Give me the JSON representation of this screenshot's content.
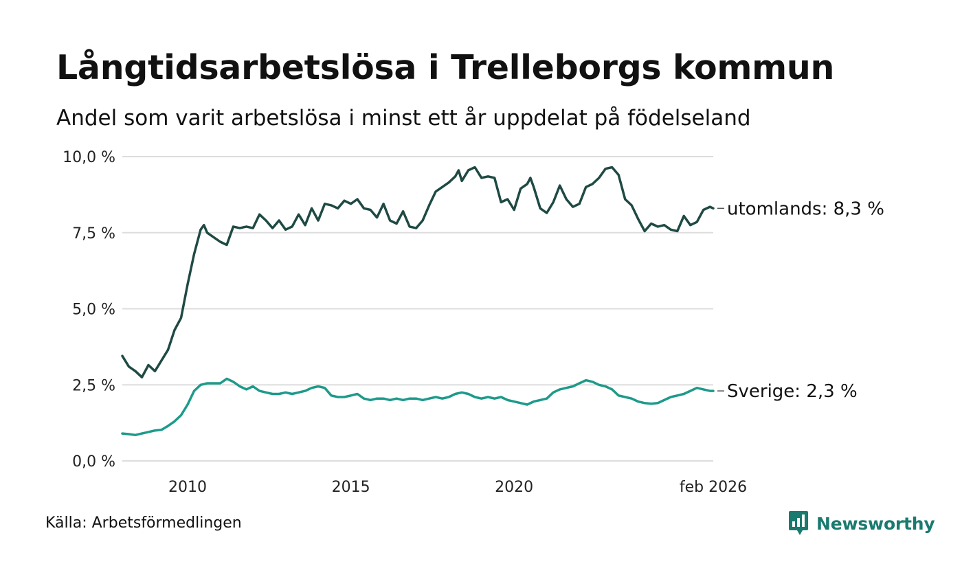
{
  "header": {
    "title": "Långtidsarbetslösa i Trelleborgs kommun",
    "subtitle": "Andel som varit arbetslösa i minst ett år uppdelat på födelseland"
  },
  "footer": {
    "source": "Källa: Arbetsförmedlingen",
    "brand": "Newsworthy"
  },
  "colors": {
    "utomlands": "#1f4a44",
    "sverige": "#1d9a8a",
    "grid": "#dddddd",
    "brand": "#1a7a6f"
  },
  "icons": {
    "brand_logo": "bar-chart-speech-bubble-icon"
  },
  "chart_data": {
    "type": "line",
    "title": "Långtidsarbetslösa i Trelleborgs kommun",
    "subtitle": "Andel som varit arbetslösa i minst ett år uppdelat på födelseland",
    "xlabel": "",
    "ylabel": "",
    "xlim": [
      2008.0,
      2026.1
    ],
    "ylim": [
      0,
      10
    ],
    "grid": true,
    "y_ticks": [
      {
        "value": 0,
        "label": "0,0 %"
      },
      {
        "value": 2.5,
        "label": "2,5 %"
      },
      {
        "value": 5,
        "label": "5,0 %"
      },
      {
        "value": 7.5,
        "label": "7,5 %"
      },
      {
        "value": 10,
        "label": "10,0 %"
      }
    ],
    "x_ticks": [
      {
        "value": 2010,
        "label": "2010"
      },
      {
        "value": 2015,
        "label": "2015"
      },
      {
        "value": 2020,
        "label": "2020"
      },
      {
        "value": 2026.1,
        "label": "feb 2026"
      }
    ],
    "series": [
      {
        "name": "utomlands",
        "label": "utomlands: 8,3 %",
        "points": [
          [
            2008.0,
            3.45
          ],
          [
            2008.2,
            3.1
          ],
          [
            2008.4,
            2.95
          ],
          [
            2008.6,
            2.75
          ],
          [
            2008.8,
            3.15
          ],
          [
            2009.0,
            2.95
          ],
          [
            2009.2,
            3.3
          ],
          [
            2009.4,
            3.65
          ],
          [
            2009.6,
            4.3
          ],
          [
            2009.8,
            4.7
          ],
          [
            2010.0,
            5.8
          ],
          [
            2010.2,
            6.8
          ],
          [
            2010.4,
            7.6
          ],
          [
            2010.5,
            7.75
          ],
          [
            2010.6,
            7.5
          ],
          [
            2010.8,
            7.35
          ],
          [
            2011.0,
            7.2
          ],
          [
            2011.2,
            7.1
          ],
          [
            2011.4,
            7.7
          ],
          [
            2011.6,
            7.65
          ],
          [
            2011.8,
            7.7
          ],
          [
            2012.0,
            7.65
          ],
          [
            2012.2,
            8.1
          ],
          [
            2012.4,
            7.9
          ],
          [
            2012.6,
            7.65
          ],
          [
            2012.8,
            7.9
          ],
          [
            2013.0,
            7.6
          ],
          [
            2013.2,
            7.7
          ],
          [
            2013.4,
            8.1
          ],
          [
            2013.6,
            7.75
          ],
          [
            2013.8,
            8.3
          ],
          [
            2014.0,
            7.9
          ],
          [
            2014.2,
            8.45
          ],
          [
            2014.4,
            8.4
          ],
          [
            2014.6,
            8.3
          ],
          [
            2014.8,
            8.55
          ],
          [
            2015.0,
            8.45
          ],
          [
            2015.2,
            8.6
          ],
          [
            2015.4,
            8.3
          ],
          [
            2015.6,
            8.25
          ],
          [
            2015.8,
            8.0
          ],
          [
            2016.0,
            8.45
          ],
          [
            2016.2,
            7.9
          ],
          [
            2016.4,
            7.8
          ],
          [
            2016.6,
            8.2
          ],
          [
            2016.8,
            7.7
          ],
          [
            2017.0,
            7.65
          ],
          [
            2017.2,
            7.9
          ],
          [
            2017.4,
            8.4
          ],
          [
            2017.6,
            8.85
          ],
          [
            2017.8,
            9.0
          ],
          [
            2018.0,
            9.15
          ],
          [
            2018.2,
            9.35
          ],
          [
            2018.3,
            9.55
          ],
          [
            2018.4,
            9.2
          ],
          [
            2018.6,
            9.55
          ],
          [
            2018.8,
            9.65
          ],
          [
            2019.0,
            9.3
          ],
          [
            2019.2,
            9.35
          ],
          [
            2019.4,
            9.3
          ],
          [
            2019.6,
            8.5
          ],
          [
            2019.8,
            8.6
          ],
          [
            2020.0,
            8.25
          ],
          [
            2020.2,
            8.95
          ],
          [
            2020.4,
            9.1
          ],
          [
            2020.5,
            9.3
          ],
          [
            2020.6,
            9.0
          ],
          [
            2020.8,
            8.3
          ],
          [
            2021.0,
            8.15
          ],
          [
            2021.2,
            8.5
          ],
          [
            2021.4,
            9.05
          ],
          [
            2021.6,
            8.6
          ],
          [
            2021.8,
            8.35
          ],
          [
            2022.0,
            8.45
          ],
          [
            2022.2,
            9.0
          ],
          [
            2022.4,
            9.1
          ],
          [
            2022.6,
            9.3
          ],
          [
            2022.8,
            9.6
          ],
          [
            2023.0,
            9.65
          ],
          [
            2023.2,
            9.4
          ],
          [
            2023.4,
            8.6
          ],
          [
            2023.6,
            8.4
          ],
          [
            2023.8,
            7.95
          ],
          [
            2024.0,
            7.55
          ],
          [
            2024.2,
            7.8
          ],
          [
            2024.4,
            7.7
          ],
          [
            2024.6,
            7.75
          ],
          [
            2024.8,
            7.6
          ],
          [
            2025.0,
            7.55
          ],
          [
            2025.2,
            8.05
          ],
          [
            2025.4,
            7.75
          ],
          [
            2025.6,
            7.85
          ],
          [
            2025.8,
            8.25
          ],
          [
            2026.0,
            8.35
          ],
          [
            2026.1,
            8.3
          ]
        ]
      },
      {
        "name": "Sverige",
        "label": "Sverige: 2,3 %",
        "points": [
          [
            2008.0,
            0.9
          ],
          [
            2008.2,
            0.88
          ],
          [
            2008.4,
            0.85
          ],
          [
            2008.6,
            0.9
          ],
          [
            2008.8,
            0.95
          ],
          [
            2009.0,
            1.0
          ],
          [
            2009.2,
            1.02
          ],
          [
            2009.4,
            1.15
          ],
          [
            2009.6,
            1.3
          ],
          [
            2009.8,
            1.5
          ],
          [
            2010.0,
            1.85
          ],
          [
            2010.2,
            2.3
          ],
          [
            2010.4,
            2.5
          ],
          [
            2010.6,
            2.55
          ],
          [
            2010.8,
            2.55
          ],
          [
            2011.0,
            2.55
          ],
          [
            2011.2,
            2.7
          ],
          [
            2011.4,
            2.6
          ],
          [
            2011.6,
            2.45
          ],
          [
            2011.8,
            2.35
          ],
          [
            2012.0,
            2.45
          ],
          [
            2012.2,
            2.3
          ],
          [
            2012.4,
            2.25
          ],
          [
            2012.6,
            2.2
          ],
          [
            2012.8,
            2.2
          ],
          [
            2013.0,
            2.25
          ],
          [
            2013.2,
            2.2
          ],
          [
            2013.4,
            2.25
          ],
          [
            2013.6,
            2.3
          ],
          [
            2013.8,
            2.4
          ],
          [
            2014.0,
            2.45
          ],
          [
            2014.2,
            2.4
          ],
          [
            2014.4,
            2.15
          ],
          [
            2014.6,
            2.1
          ],
          [
            2014.8,
            2.1
          ],
          [
            2015.0,
            2.15
          ],
          [
            2015.2,
            2.2
          ],
          [
            2015.4,
            2.05
          ],
          [
            2015.6,
            2.0
          ],
          [
            2015.8,
            2.05
          ],
          [
            2016.0,
            2.05
          ],
          [
            2016.2,
            2.0
          ],
          [
            2016.4,
            2.05
          ],
          [
            2016.6,
            2.0
          ],
          [
            2016.8,
            2.05
          ],
          [
            2017.0,
            2.05
          ],
          [
            2017.2,
            2.0
          ],
          [
            2017.4,
            2.05
          ],
          [
            2017.6,
            2.1
          ],
          [
            2017.8,
            2.05
          ],
          [
            2018.0,
            2.1
          ],
          [
            2018.2,
            2.2
          ],
          [
            2018.4,
            2.25
          ],
          [
            2018.6,
            2.2
          ],
          [
            2018.8,
            2.1
          ],
          [
            2019.0,
            2.05
          ],
          [
            2019.2,
            2.1
          ],
          [
            2019.4,
            2.05
          ],
          [
            2019.6,
            2.1
          ],
          [
            2019.8,
            2.0
          ],
          [
            2020.0,
            1.95
          ],
          [
            2020.2,
            1.9
          ],
          [
            2020.4,
            1.85
          ],
          [
            2020.6,
            1.95
          ],
          [
            2020.8,
            2.0
          ],
          [
            2021.0,
            2.05
          ],
          [
            2021.2,
            2.25
          ],
          [
            2021.4,
            2.35
          ],
          [
            2021.6,
            2.4
          ],
          [
            2021.8,
            2.45
          ],
          [
            2022.0,
            2.55
          ],
          [
            2022.2,
            2.65
          ],
          [
            2022.4,
            2.6
          ],
          [
            2022.6,
            2.5
          ],
          [
            2022.8,
            2.45
          ],
          [
            2023.0,
            2.35
          ],
          [
            2023.2,
            2.15
          ],
          [
            2023.4,
            2.1
          ],
          [
            2023.6,
            2.05
          ],
          [
            2023.8,
            1.95
          ],
          [
            2024.0,
            1.9
          ],
          [
            2024.2,
            1.88
          ],
          [
            2024.4,
            1.9
          ],
          [
            2024.6,
            2.0
          ],
          [
            2024.8,
            2.1
          ],
          [
            2025.0,
            2.15
          ],
          [
            2025.2,
            2.2
          ],
          [
            2025.4,
            2.3
          ],
          [
            2025.6,
            2.4
          ],
          [
            2025.8,
            2.35
          ],
          [
            2026.0,
            2.3
          ],
          [
            2026.1,
            2.3
          ]
        ]
      }
    ]
  }
}
